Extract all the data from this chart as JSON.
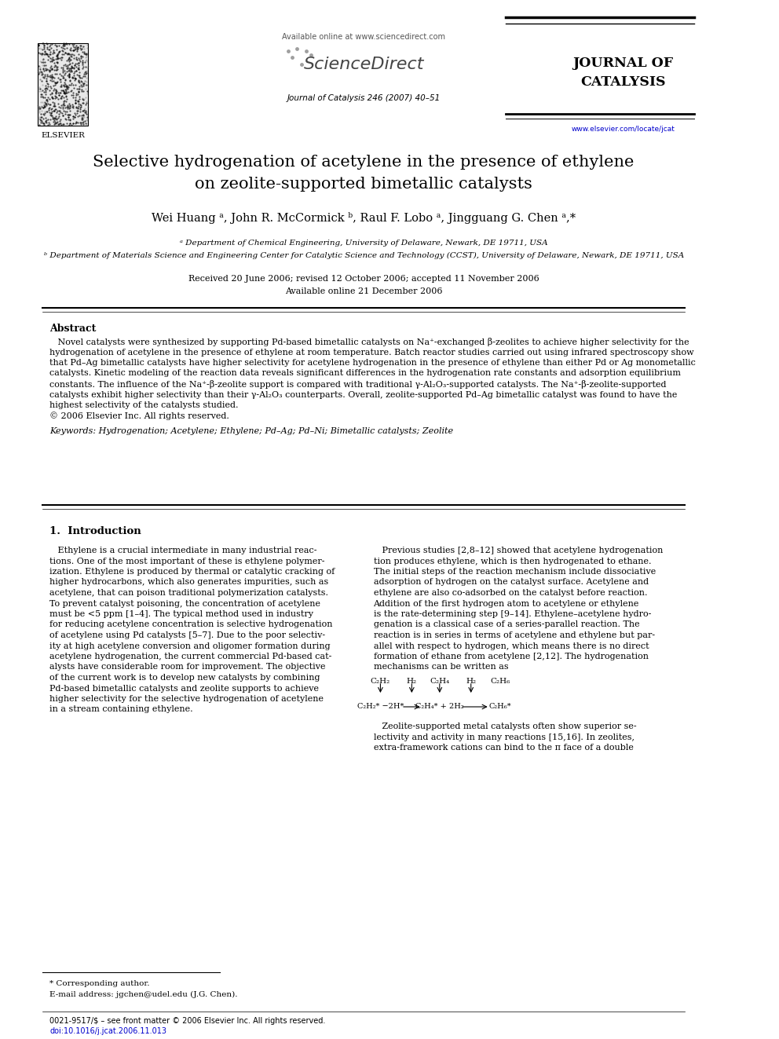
{
  "bg_color": "#ffffff",
  "header": {
    "elsevier_text": "ELSEVIER",
    "available_online": "Available online at www.sciencedirect.com",
    "sciencedirect": "ScienceDirect",
    "journal_name_line1": "JOURNAL OF",
    "journal_name_line2": "CATALYSIS",
    "journal_ref": "Journal of Catalysis 246 (2007) 40–51",
    "url": "www.elsevier.com/locate/jcat"
  },
  "title_line1": "Selective hydrogenation of acetylene in the presence of ethylene",
  "title_line2": "on zeolite-supported bimetallic catalysts",
  "authors": "Wei Huang ᵃ, John R. McCormick ᵇ, Raul F. Lobo ᵃ, Jingguang G. Chen ᵃ,*",
  "affil_a": "ᵃ Department of Chemical Engineering, University of Delaware, Newark, DE 19711, USA",
  "affil_b": "ᵇ Department of Materials Science and Engineering Center for Catalytic Science and Technology (CCST), University of Delaware, Newark, DE 19711, USA",
  "received": "Received 20 June 2006; revised 12 October 2006; accepted 11 November 2006",
  "available_online2": "Available online 21 December 2006",
  "abstract_title": "Abstract",
  "keywords": "Keywords: Hydrogenation; Acetylene; Ethylene; Pd–Ag; Pd–Ni; Bimetallic catalysts; Zeolite",
  "section1_title": "1.  Introduction",
  "footnote_star": "* Corresponding author.",
  "footnote_email": "E-mail address: jgchen@udel.edu (J.G. Chen).",
  "footer_issn": "0021-9517/$ – see front matter © 2006 Elsevier Inc. All rights reserved.",
  "footer_doi": "doi:10.1016/j.jcat.2006.11.013",
  "abstract_lines": [
    "   Novel catalysts were synthesized by supporting Pd-based bimetallic catalysts on Na⁺-exchanged β-zeolites to achieve higher selectivity for the",
    "hydrogenation of acetylene in the presence of ethylene at room temperature. Batch reactor studies carried out using infrared spectroscopy show",
    "that Pd–Ag bimetallic catalysts have higher selectivity for acetylene hydrogenation in the presence of ethylene than either Pd or Ag monometallic",
    "catalysts. Kinetic modeling of the reaction data reveals significant differences in the hydrogenation rate constants and adsorption equilibrium",
    "constants. The influence of the Na⁺-β-zeolite support is compared with traditional γ-Al₂O₃-supported catalysts. The Na⁺-β-zeolite-supported",
    "catalysts exhibit higher selectivity than their γ-Al₂O₃ counterparts. Overall, zeolite-supported Pd–Ag bimetallic catalyst was found to have the",
    "highest selectivity of the catalysts studied.",
    "© 2006 Elsevier Inc. All rights reserved."
  ],
  "intro_left_lines": [
    "   Ethylene is a crucial intermediate in many industrial reac-",
    "tions. One of the most important of these is ethylene polymer-",
    "ization. Ethylene is produced by thermal or catalytic cracking of",
    "higher hydrocarbons, which also generates impurities, such as",
    "acetylene, that can poison traditional polymerization catalysts.",
    "To prevent catalyst poisoning, the concentration of acetylene",
    "must be <5 ppm [1–4]. The typical method used in industry",
    "for reducing acetylene concentration is selective hydrogenation",
    "of acetylene using Pd catalysts [5–7]. Due to the poor selectiv-",
    "ity at high acetylene conversion and oligomer formation during",
    "acetylene hydrogenation, the current commercial Pd-based cat-",
    "alysts have considerable room for improvement. The objective",
    "of the current work is to develop new catalysts by combining",
    "Pd-based bimetallic catalysts and zeolite supports to achieve",
    "higher selectivity for the selective hydrogenation of acetylene",
    "in a stream containing ethylene."
  ],
  "intro_right_lines": [
    "   Previous studies [2,8–12] showed that acetylene hydrogenation",
    "tion produces ethylene, which is then hydrogenated to ethane.",
    "The initial steps of the reaction mechanism include dissociative",
    "adsorption of hydrogen on the catalyst surface. Acetylene and",
    "ethylene are also co-adsorbed on the catalyst before reaction.",
    "Addition of the first hydrogen atom to acetylene or ethylene",
    "is the rate-determining step [9–14]. Ethylene–acetylene hydro-",
    "genation is a classical case of a series-parallel reaction. The",
    "reaction is in series in terms of acetylene and ethylene but par-",
    "allel with respect to hydrogen, which means there is no direct",
    "formation of ethane from acetylene [2,12]. The hydrogenation",
    "mechanisms can be written as"
  ],
  "zeolite_lines": [
    "   Zeolite-supported metal catalysts often show superior se-",
    "lectivity and activity in many reactions [15,16]. In zeolites,",
    "extra-framework cations can bind to the π face of a double"
  ]
}
